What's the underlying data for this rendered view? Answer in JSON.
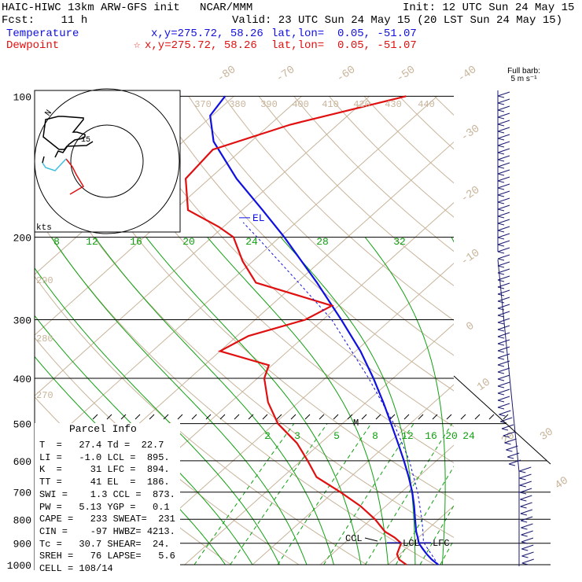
{
  "header": {
    "line1_left": "HAIC-HIWC 13km ARW-GFS init   NCAR/MMM",
    "line1_right": "Init: 12 UTC Sun 24 May 15",
    "line2_left": "Fcst:    11 h",
    "line2_right": "Valid: 23 UTC Sun 24 May 15 (20 LST Sun 24 May 15)",
    "temp_label": "Temperature",
    "temp_xy": "x,y=275.72, 58.26",
    "temp_latlon": "lat,lon=  0.05, -51.07",
    "dew_label": "Dewpoint",
    "dew_marker": "☆",
    "dew_xy": "x,y=275.72, 58.26",
    "dew_latlon": "lat,lon=  0.05, -51.07"
  },
  "colors": {
    "temperature": "#1010e0",
    "dewpoint": "#e01010",
    "isotherm": "#c8b49a",
    "dry_adiabat": "#c8b49a",
    "moist_adiabat": "#10a010",
    "mixing_ratio": "#10a010",
    "hodo_low": "#40c0e0",
    "isobar": "#000000"
  },
  "barbs": {
    "title_line1": "Full barb:",
    "title_line2": "5 m s⁻¹"
  },
  "parcel": {
    "title": "Parcel Info",
    "rows": [
      "T  =   27.4 Td =  22.7",
      "LI =   -1.0 LCL =  895.",
      "K  =     31 LFC =  894.",
      "TT =     41 EL  =  186.",
      "SWI =    1.3 CCL =  873.",
      "PW =   5.13 YGP =   0.1",
      "CAPE =   233 SWEAT=  231",
      "CIN =    -97 HWBZ= 4213.",
      "Tc =   30.7 SHEAR=  24.",
      "SREH =   76 LAPSE=   5.6",
      "CELL = 108/14"
    ]
  },
  "hodograph": {
    "units_label": "kts",
    "ring_label": "15"
  },
  "level_labels": {
    "el": "EL",
    "m": "M",
    "ccl": "CCL",
    "lcl": "LCL",
    "lfc": "LFC"
  },
  "chart_data": {
    "type": "line",
    "title": "",
    "xlabel": "",
    "ylabel": "",
    "y_scale": "log-pressure",
    "ylim": [
      1000,
      100
    ],
    "pressure_ticks": [
      "100",
      "200",
      "300",
      "400",
      "500",
      "600",
      "700",
      "800",
      "900",
      "1000"
    ],
    "isotherm_labels": [
      "-80",
      "-70",
      "-60",
      "-50",
      "-40",
      "-30",
      "-20",
      "-10",
      "0",
      "10",
      "20",
      "30",
      "40"
    ],
    "theta_labels_top": [
      "370",
      "380",
      "390",
      "400",
      "410",
      "420",
      "430",
      "440"
    ],
    "theta_labels_left": [
      "290",
      "280",
      "270"
    ],
    "mixing_ratio_labels_upper": [
      "8",
      "12",
      "16",
      "20",
      "24",
      "28",
      "32"
    ],
    "mixing_ratio_labels_lower": [
      "2",
      "3",
      "5",
      "8",
      "12",
      "16",
      "20",
      "24"
    ],
    "series": [
      {
        "name": "Temperature",
        "points": [
          {
            "p": 1000,
            "t": 27.4
          },
          {
            "p": 975,
            "t": 25.6
          },
          {
            "p": 950,
            "t": 24.0
          },
          {
            "p": 925,
            "t": 22.5
          },
          {
            "p": 900,
            "t": 21.0
          },
          {
            "p": 875,
            "t": 19.9
          },
          {
            "p": 850,
            "t": 18.7
          },
          {
            "p": 800,
            "t": 16.5
          },
          {
            "p": 750,
            "t": 14.2
          },
          {
            "p": 700,
            "t": 11.6
          },
          {
            "p": 650,
            "t": 8.6
          },
          {
            "p": 600,
            "t": 5.2
          },
          {
            "p": 550,
            "t": 1.4
          },
          {
            "p": 500,
            "t": -2.8
          },
          {
            "p": 450,
            "t": -7.5
          },
          {
            "p": 400,
            "t": -12.9
          },
          {
            "p": 350,
            "t": -19.3
          },
          {
            "p": 300,
            "t": -27.3
          },
          {
            "p": 250,
            "t": -37.0
          },
          {
            "p": 200,
            "t": -49.3
          },
          {
            "p": 175,
            "t": -57.0
          },
          {
            "p": 150,
            "t": -66.0
          },
          {
            "p": 125,
            "t": -75.5
          },
          {
            "p": 110,
            "t": -80.3
          },
          {
            "p": 100,
            "t": -81.3
          }
        ]
      },
      {
        "name": "Dewpoint",
        "points": [
          {
            "p": 1000,
            "t": 22.7
          },
          {
            "p": 975,
            "t": 20.8
          },
          {
            "p": 950,
            "t": 19.6
          },
          {
            "p": 925,
            "t": 19.0
          },
          {
            "p": 900,
            "t": 18.4
          },
          {
            "p": 875,
            "t": 16.5
          },
          {
            "p": 850,
            "t": 14.1
          },
          {
            "p": 800,
            "t": 10.6
          },
          {
            "p": 750,
            "t": 6.3
          },
          {
            "p": 700,
            "t": 1.0
          },
          {
            "p": 650,
            "t": -5.0
          },
          {
            "p": 600,
            "t": -9.0
          },
          {
            "p": 550,
            "t": -13.5
          },
          {
            "p": 500,
            "t": -19.5
          },
          {
            "p": 450,
            "t": -24.5
          },
          {
            "p": 400,
            "t": -29.0
          },
          {
            "p": 375,
            "t": -30.5
          },
          {
            "p": 350,
            "t": -40.0
          },
          {
            "p": 325,
            "t": -38.3
          },
          {
            "p": 300,
            "t": -32.6
          },
          {
            "p": 280,
            "t": -31.0
          },
          {
            "p": 250,
            "t": -46.0
          },
          {
            "p": 225,
            "t": -51.5
          },
          {
            "p": 200,
            "t": -56.8
          },
          {
            "p": 190,
            "t": -60.7
          },
          {
            "p": 175,
            "t": -68.0
          },
          {
            "p": 150,
            "t": -73.5
          },
          {
            "p": 130,
            "t": -74.3
          },
          {
            "p": 115,
            "t": -67.0
          },
          {
            "p": 100,
            "t": -54.6
          }
        ]
      },
      {
        "name": "Parcel",
        "points": [
          {
            "p": 1000,
            "t": 27.4
          },
          {
            "p": 895,
            "t": 21.5
          },
          {
            "p": 850,
            "t": 19.7
          },
          {
            "p": 800,
            "t": 17.5
          },
          {
            "p": 700,
            "t": 12.4
          },
          {
            "p": 600,
            "t": 6.0
          },
          {
            "p": 500,
            "t": -2.4
          },
          {
            "p": 400,
            "t": -13.6
          },
          {
            "p": 300,
            "t": -28.7
          },
          {
            "p": 250,
            "t": -39.7
          },
          {
            "p": 200,
            "t": -53.3
          },
          {
            "p": 186,
            "t": -57.8
          }
        ]
      }
    ],
    "levels": {
      "lcl_hpa": 895,
      "lfc_hpa": 894,
      "el_hpa": 186,
      "ccl_hpa": 873
    },
    "hodograph_rings_kts": [
      15,
      30
    ]
  }
}
